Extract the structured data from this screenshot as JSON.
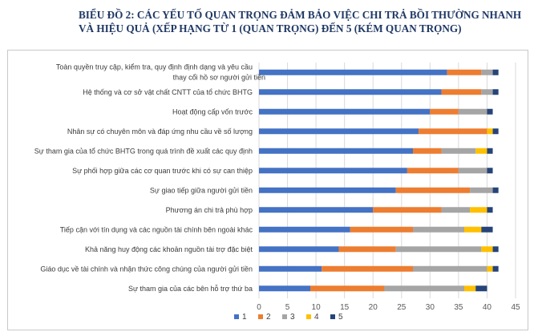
{
  "chart_data": {
    "type": "bar",
    "orientation": "horizontal",
    "stacked": true,
    "title": "BIỂU ĐỒ 2: CÁC YẾU TỐ QUAN TRỌNG ĐẢM BẢO VIỆC CHI TRẢ BỒI THƯỜNG NHANH VÀ HIỆU QUẢ (XẾP HẠNG TỪ 1 (QUAN TRỌNG) ĐẾN 5 (KÉM QUAN TRỌNG)",
    "categories": [
      "Toàn quyền truy cập, kiểm tra, quy định định dạng và yêu cầu thay cổi hồ sơ người gửi tiền",
      "Hệ thống và cơ sở vật chất CNTT của tổ chức BHTG",
      "Hoạt động cấp vốn trước",
      "Nhân sự có chuyên môn và đáp ứng nhu cầu về số lượng",
      "Sự tham gia của tổ chức BHTG trong quá trình đề xuất các quy định",
      "Sự phối hợp giữa các cơ quan trước khi có sự can thiệp",
      "Sự giao tiếp giữa người gửi tiền",
      "Phương án chi trả phù hợp",
      "Tiếp cận với tín dụng và các nguồn tài chính bên ngoài khác",
      "Khả năng huy động các khoản nguồn tài trợ đặc biệt",
      "Giáo dục về tài chính và nhận thức công chúng của người gửi tiền",
      "Sự tham gia của các bên hỗ trợ thứ ba"
    ],
    "series": [
      {
        "name": "1",
        "color": "#4472c4",
        "values": [
          33,
          32,
          30,
          28,
          27,
          26,
          24,
          20,
          16,
          14,
          11,
          9
        ]
      },
      {
        "name": "2",
        "color": "#ed7d31",
        "values": [
          6,
          7,
          5,
          12,
          5,
          9,
          13,
          12,
          11,
          10,
          16,
          13
        ]
      },
      {
        "name": "3",
        "color": "#a5a5a5",
        "values": [
          2,
          2,
          5,
          0,
          6,
          5,
          4,
          5,
          9,
          15,
          13,
          14
        ]
      },
      {
        "name": "4",
        "color": "#ffc000",
        "values": [
          0,
          0,
          0,
          1,
          2,
          0,
          0,
          3,
          3,
          2,
          1,
          2
        ]
      },
      {
        "name": "5",
        "color": "#264478",
        "values": [
          1,
          1,
          1,
          1,
          1,
          1,
          1,
          1,
          2,
          1,
          1,
          2
        ]
      }
    ],
    "xlim": [
      0,
      45
    ],
    "xticks": [
      0,
      5,
      10,
      15,
      20,
      25,
      30,
      35,
      40,
      45
    ],
    "grid": true,
    "legend_position": "bottom"
  }
}
